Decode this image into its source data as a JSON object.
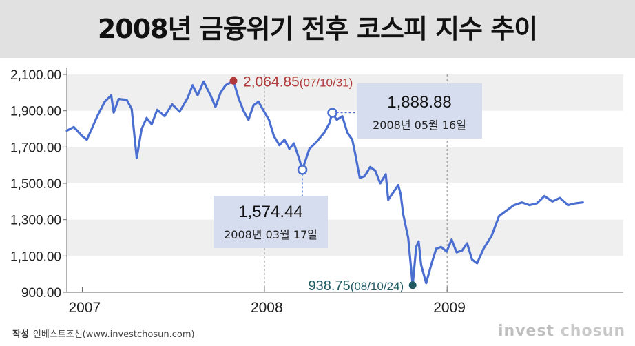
{
  "title": "2008년 금융위기 전후 코스피 지수 추이",
  "footer": {
    "credit_label": "작성",
    "credit_text": "인베스트조선(www.investchosun.com)",
    "logo_word1": "invest",
    "logo_word2": "chosun"
  },
  "colors": {
    "line": "#4a6fd1",
    "peak": "#b03a3a",
    "trough": "#1f5a63",
    "callout_box": "#d6ddef",
    "band": "#efefef"
  },
  "chart_data": {
    "type": "line",
    "title": "2008년 금융위기 전후 코스피 지수 추이",
    "xlabel": "",
    "ylabel": "",
    "ylim": [
      900,
      2100
    ],
    "yticks": [
      2100,
      1900,
      1700,
      1500,
      1300,
      1100,
      900
    ],
    "ytick_labels": [
      "2,100.00",
      "1,900.00",
      "1,700.00",
      "1,500.00",
      "1,300.00",
      "1,100.00",
      "900.00"
    ],
    "xlim": [
      "2006-12-01",
      "2009-12-20"
    ],
    "xticks": [
      "2007-01-01",
      "2008-01-01",
      "2009-01-01"
    ],
    "xtick_labels": [
      "2007",
      "2008",
      "2009"
    ],
    "series": [
      {
        "points": [
          [
            "2006-12-01",
            1790
          ],
          [
            "2006-12-15",
            1810
          ],
          [
            "2007-01-01",
            1760
          ],
          [
            "2007-01-10",
            1740
          ],
          [
            "2007-01-20",
            1800
          ],
          [
            "2007-01-31",
            1870
          ],
          [
            "2007-02-15",
            1950
          ],
          [
            "2007-02-28",
            1985
          ],
          [
            "2007-03-05",
            1890
          ],
          [
            "2007-03-15",
            1965
          ],
          [
            "2007-03-31",
            1960
          ],
          [
            "2007-04-10",
            1910
          ],
          [
            "2007-04-20",
            1640
          ],
          [
            "2007-04-30",
            1800
          ],
          [
            "2007-05-10",
            1860
          ],
          [
            "2007-05-20",
            1825
          ],
          [
            "2007-05-31",
            1905
          ],
          [
            "2007-06-15",
            1870
          ],
          [
            "2007-06-30",
            1935
          ],
          [
            "2007-07-15",
            1895
          ],
          [
            "2007-07-31",
            1970
          ],
          [
            "2007-08-10",
            2040
          ],
          [
            "2007-08-20",
            1985
          ],
          [
            "2007-09-01",
            2060
          ],
          [
            "2007-09-15",
            1985
          ],
          [
            "2007-09-25",
            1920
          ],
          [
            "2007-10-05",
            2000
          ],
          [
            "2007-10-15",
            2040
          ],
          [
            "2007-10-31",
            2064.85
          ],
          [
            "2007-11-10",
            1970
          ],
          [
            "2007-11-20",
            1900
          ],
          [
            "2007-11-30",
            1850
          ],
          [
            "2007-12-10",
            1930
          ],
          [
            "2007-12-20",
            1950
          ],
          [
            "2007-12-31",
            1897
          ],
          [
            "2008-01-10",
            1850
          ],
          [
            "2008-01-20",
            1760
          ],
          [
            "2008-01-31",
            1710
          ],
          [
            "2008-02-10",
            1740
          ],
          [
            "2008-02-20",
            1690
          ],
          [
            "2008-02-29",
            1720
          ],
          [
            "2008-03-10",
            1640
          ],
          [
            "2008-03-17",
            1574.44
          ],
          [
            "2008-03-31",
            1690
          ],
          [
            "2008-04-15",
            1730
          ],
          [
            "2008-04-30",
            1780
          ],
          [
            "2008-05-10",
            1830
          ],
          [
            "2008-05-16",
            1888.88
          ],
          [
            "2008-05-25",
            1850
          ],
          [
            "2008-06-05",
            1870
          ],
          [
            "2008-06-15",
            1780
          ],
          [
            "2008-06-25",
            1740
          ],
          [
            "2008-06-30",
            1675
          ],
          [
            "2008-07-10",
            1530
          ],
          [
            "2008-07-20",
            1540
          ],
          [
            "2008-07-31",
            1590
          ],
          [
            "2008-08-10",
            1570
          ],
          [
            "2008-08-20",
            1500
          ],
          [
            "2008-08-31",
            1550
          ],
          [
            "2008-09-05",
            1410
          ],
          [
            "2008-09-15",
            1450
          ],
          [
            "2008-09-25",
            1490
          ],
          [
            "2008-09-30",
            1440
          ],
          [
            "2008-10-05",
            1330
          ],
          [
            "2008-10-15",
            1200
          ],
          [
            "2008-10-24",
            938.75
          ],
          [
            "2008-10-31",
            1150
          ],
          [
            "2008-11-05",
            1180
          ],
          [
            "2008-11-10",
            1050
          ],
          [
            "2008-11-20",
            950
          ],
          [
            "2008-11-30",
            1050
          ],
          [
            "2008-12-10",
            1140
          ],
          [
            "2008-12-20",
            1150
          ],
          [
            "2008-12-31",
            1124
          ],
          [
            "2009-01-10",
            1190
          ],
          [
            "2009-01-20",
            1120
          ],
          [
            "2009-01-31",
            1130
          ],
          [
            "2009-02-10",
            1170
          ],
          [
            "2009-02-20",
            1080
          ],
          [
            "2009-03-02",
            1060
          ],
          [
            "2009-03-15",
            1140
          ],
          [
            "2009-03-31",
            1210
          ],
          [
            "2009-04-15",
            1320
          ],
          [
            "2009-04-30",
            1350
          ],
          [
            "2009-05-15",
            1380
          ],
          [
            "2009-05-31",
            1395
          ],
          [
            "2009-06-15",
            1380
          ],
          [
            "2009-06-30",
            1390
          ],
          [
            "2009-07-15",
            1430
          ],
          [
            "2009-07-31",
            1400
          ],
          [
            "2009-08-15",
            1420
          ],
          [
            "2009-08-31",
            1380
          ],
          [
            "2009-09-15",
            1390
          ],
          [
            "2009-09-30",
            1395
          ]
        ]
      }
    ],
    "annotations": {
      "peak": {
        "date": "2007-10-31",
        "value": 2064.85,
        "value_text": "2,064.85",
        "date_text": "(07/10/31)"
      },
      "low_march": {
        "date": "2008-03-17",
        "value": 1574.44,
        "value_text": "1,574.44",
        "date_text": "2008년 03월 17일"
      },
      "high_may": {
        "date": "2008-05-16",
        "value": 1888.88,
        "value_text": "1,888.88",
        "date_text": "2008년 05월 16일"
      },
      "trough": {
        "date": "2008-10-24",
        "value": 938.75,
        "value_text": "938.75",
        "date_text": "(08/10/24)"
      }
    }
  }
}
